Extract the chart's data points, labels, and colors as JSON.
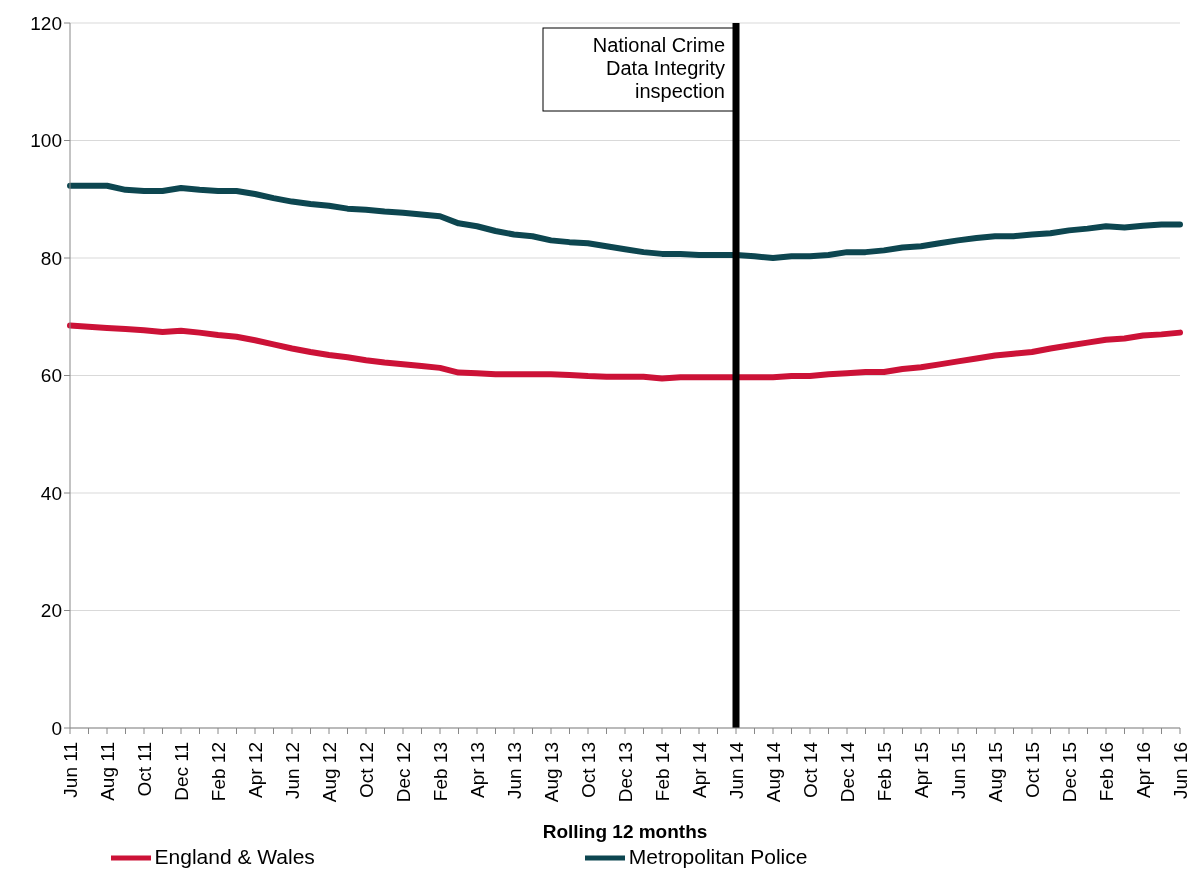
{
  "chart_data": {
    "type": "line",
    "xlabel": "Rolling 12 months",
    "categories": [
      "Jun 11",
      null,
      "Aug 11",
      null,
      "Oct 11",
      null,
      "Dec 11",
      null,
      "Feb 12",
      null,
      "Apr 12",
      null,
      "Jun 12",
      null,
      "Aug 12",
      null,
      "Oct 12",
      null,
      "Dec 12",
      null,
      "Feb 13",
      null,
      "Apr 13",
      null,
      "Jun 13",
      null,
      "Aug 13",
      null,
      "Oct 13",
      null,
      "Dec 13",
      null,
      "Feb 14",
      null,
      "Apr 14",
      null,
      "Jun 14",
      null,
      "Aug 14",
      null,
      "Oct 14",
      null,
      "Dec 14",
      null,
      "Feb 15",
      null,
      "Apr 15",
      null,
      "Jun 15",
      null,
      "Aug 15",
      null,
      "Oct 15",
      null,
      "Dec 15",
      null,
      "Feb 16",
      null,
      "Apr 16",
      null,
      "Jun 16"
    ],
    "series": [
      {
        "name": "Metropolitan Police",
        "color": "#0d4650",
        "values": [
          92.3,
          92.3,
          92.3,
          91.6,
          91.4,
          91.4,
          91.9,
          91.6,
          91.4,
          91.4,
          90.9,
          90.2,
          89.6,
          89.2,
          88.9,
          88.4,
          88.2,
          87.9,
          87.7,
          87.4,
          87.1,
          85.9,
          85.4,
          84.6,
          84.0,
          83.7,
          83.0,
          82.7,
          82.5,
          82.0,
          81.5,
          81.0,
          80.7,
          80.7,
          80.5,
          80.5,
          80.5,
          80.3,
          80.0,
          80.3,
          80.3,
          80.5,
          81.0,
          81.0,
          81.3,
          81.8,
          82.0,
          82.5,
          83.0,
          83.4,
          83.7,
          83.7,
          84.0,
          84.2,
          84.7,
          85.0,
          85.4,
          85.2,
          85.5,
          85.7,
          85.7
        ]
      },
      {
        "name": "England & Wales",
        "color": "#cc1237",
        "values": [
          68.5,
          68.3,
          68.1,
          67.9,
          67.7,
          67.4,
          67.6,
          67.3,
          66.9,
          66.6,
          66.0,
          65.3,
          64.6,
          64.0,
          63.5,
          63.1,
          62.6,
          62.2,
          61.9,
          61.6,
          61.3,
          60.5,
          60.4,
          60.2,
          60.2,
          60.2,
          60.2,
          60.1,
          59.9,
          59.8,
          59.8,
          59.8,
          59.5,
          59.7,
          59.7,
          59.7,
          59.7,
          59.7,
          59.7,
          59.9,
          59.9,
          60.2,
          60.4,
          60.6,
          60.6,
          61.1,
          61.4,
          61.9,
          62.4,
          62.9,
          63.4,
          63.7,
          64.0,
          64.6,
          65.1,
          65.6,
          66.1,
          66.3,
          66.8,
          67.0,
          67.3
        ]
      }
    ],
    "ylim": [
      0,
      120
    ],
    "yticks": [
      0,
      20,
      40,
      60,
      80,
      100,
      120
    ],
    "grid": "y",
    "legend": "bottom",
    "ref_lines": [
      {
        "axis": "x",
        "value": "Jun 14",
        "label": "National Crime Data Integrity inspection",
        "color": "#000000"
      }
    ]
  }
}
